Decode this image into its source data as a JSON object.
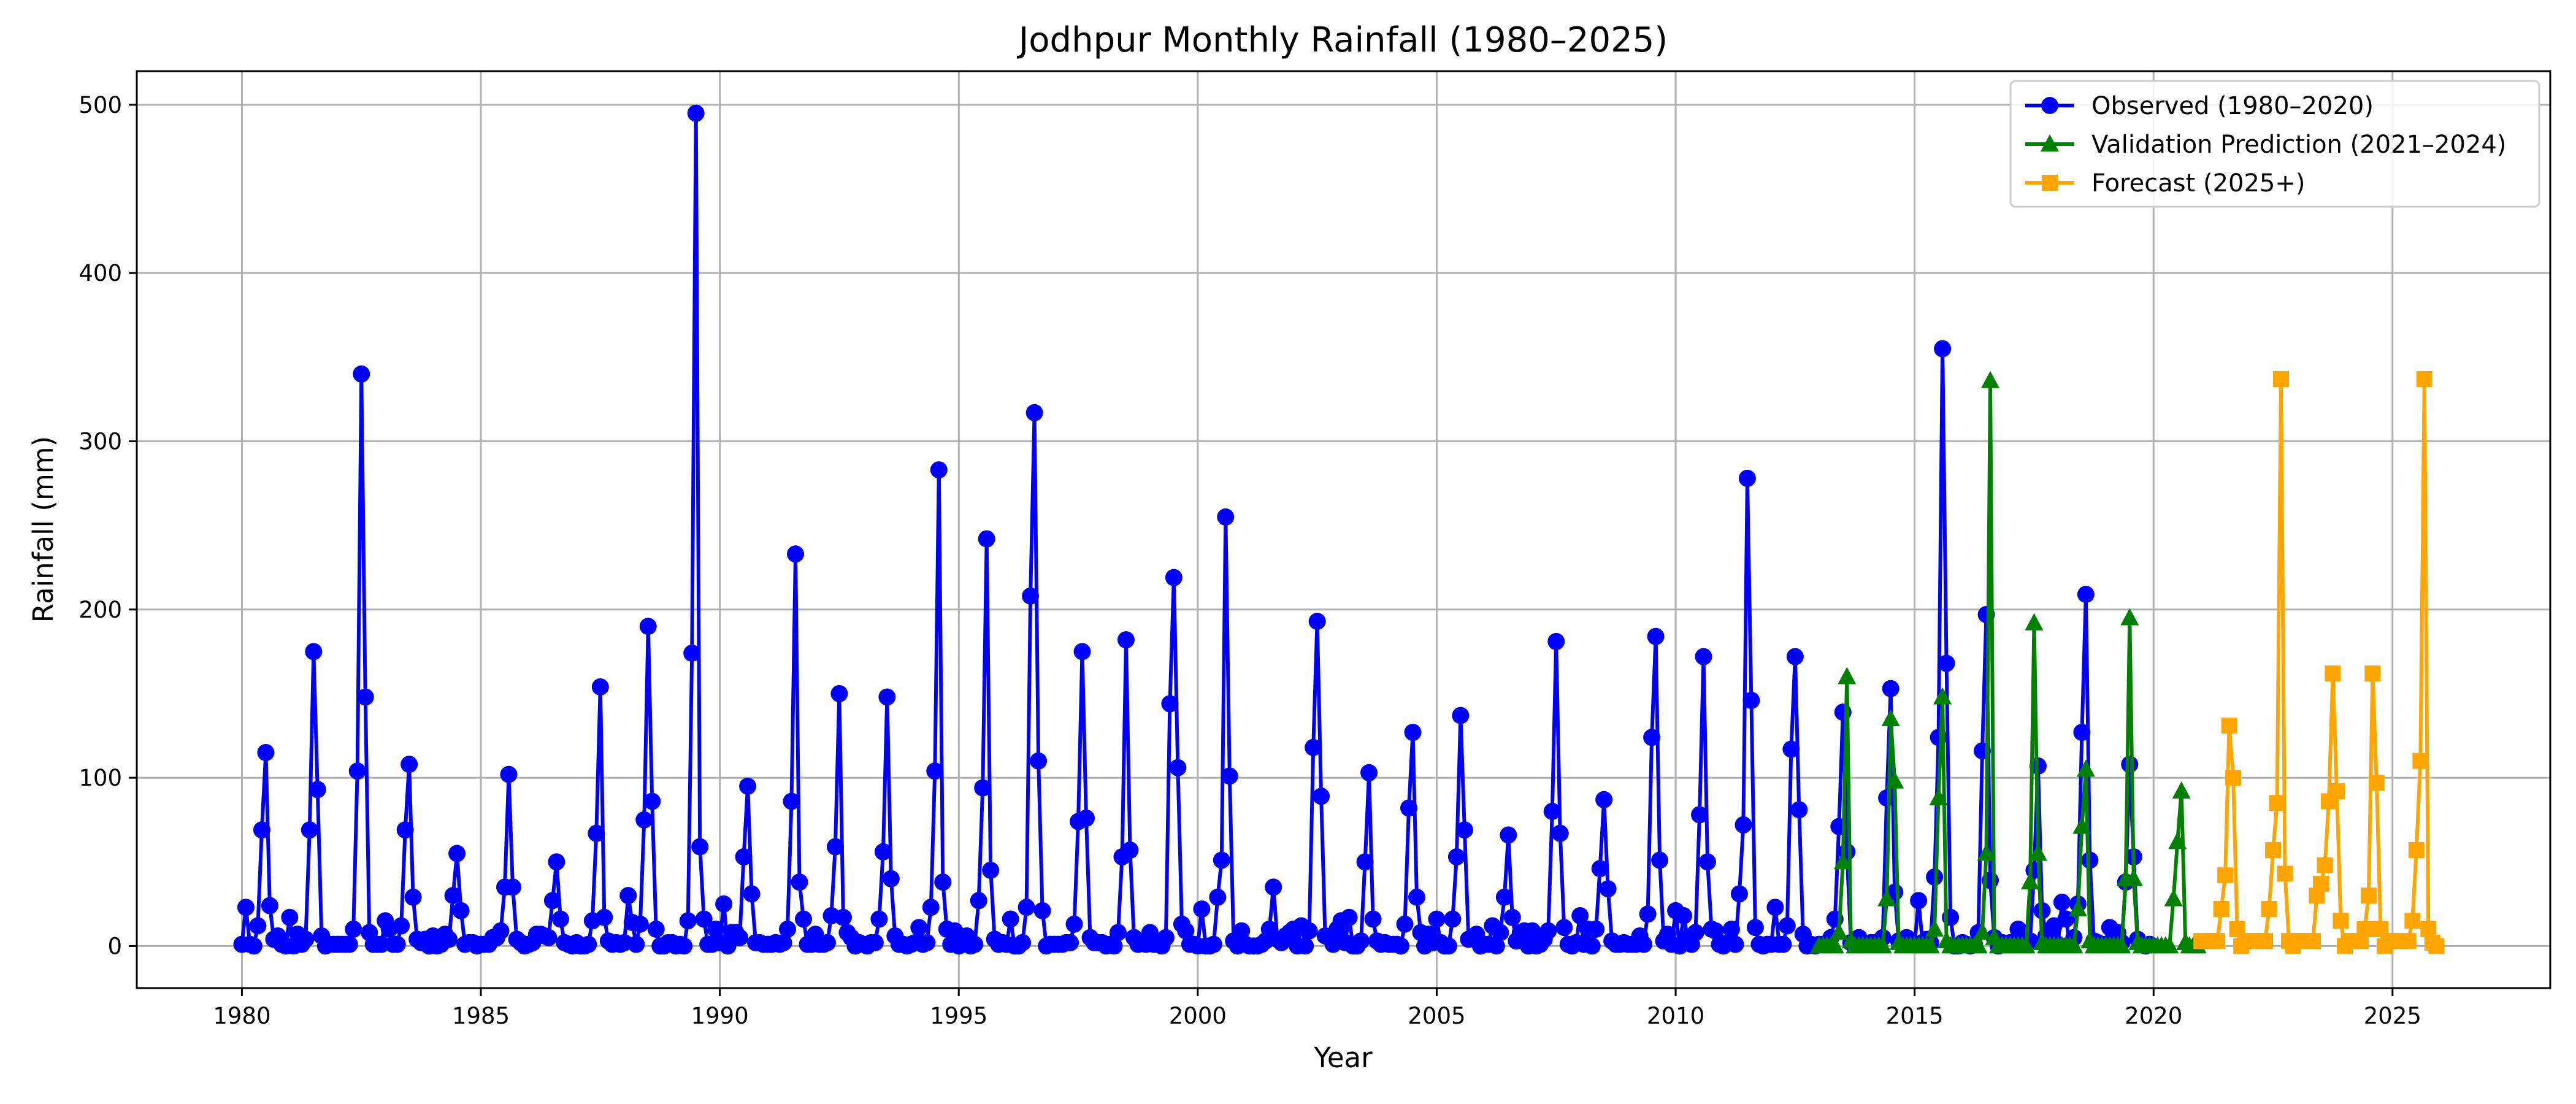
{
  "chart_data": {
    "type": "line",
    "title": "Jodhpur Monthly Rainfall (1980–2025)",
    "xlabel": "Year",
    "ylabel": "Rainfall (mm)",
    "xlim": [
      1977.8,
      2028.3
    ],
    "ylim": [
      -25,
      520
    ],
    "x_ticks": [
      1980,
      1985,
      1990,
      1995,
      2000,
      2005,
      2010,
      2015,
      2020,
      2025
    ],
    "y_ticks": [
      0,
      100,
      200,
      300,
      400,
      500
    ],
    "grid": true,
    "legend_position": "top-right",
    "series": [
      {
        "name": "Observed (1980–2020)",
        "color": "#0000ff",
        "marker": "circle",
        "yearly_peaks": [
          115,
          175,
          340,
          108,
          55,
          102,
          50,
          154,
          190,
          495,
          95,
          233,
          150,
          148,
          283,
          242,
          317,
          175,
          182,
          219,
          255,
          35,
          193,
          103,
          127,
          137,
          66,
          181,
          87,
          184,
          172,
          278,
          172,
          139,
          153,
          355,
          197,
          107,
          209,
          108
        ],
        "monthly_values": []
      },
      {
        "name": "Validation Prediction (2021–2024)",
        "color": "#008000",
        "marker": "triangle",
        "x_start": 2013.0,
        "monthly_values": [
          0,
          0,
          0,
          0,
          0,
          8,
          50,
          160,
          3,
          0,
          0,
          0,
          0,
          0,
          0,
          0,
          0,
          28,
          135,
          98,
          2,
          0,
          0,
          0,
          0,
          0,
          0,
          0,
          0,
          10,
          88,
          148,
          3,
          0,
          0,
          0,
          0,
          0,
          0,
          0,
          0,
          8,
          55,
          336,
          5,
          0,
          0,
          0,
          0,
          0,
          0,
          0,
          0,
          38,
          192,
          55,
          2,
          0,
          0,
          0,
          0,
          0,
          0,
          0,
          0,
          22,
          71,
          105,
          3,
          0,
          0,
          0,
          0,
          0,
          0,
          0,
          0,
          40,
          195,
          40,
          2,
          0,
          0,
          0,
          0,
          0,
          0,
          0,
          0,
          28,
          62,
          92,
          2,
          0,
          0,
          0
        ]
      },
      {
        "name": "Forecast (2025+)",
        "color": "#ffa500",
        "marker": "square",
        "x_start": 2021.0,
        "monthly_values": [
          3,
          3,
          3,
          3,
          3,
          22,
          42,
          131,
          100,
          10,
          0,
          3,
          3,
          3,
          3,
          3,
          3,
          22,
          57,
          85,
          337,
          43,
          3,
          0,
          3,
          3,
          3,
          3,
          3,
          30,
          37,
          48,
          86,
          162,
          92,
          15,
          0,
          3,
          3,
          3,
          3,
          10,
          30,
          162,
          97,
          10,
          0,
          3,
          3,
          3,
          3,
          3,
          3,
          15,
          57,
          110,
          337,
          10,
          2,
          0
        ]
      }
    ]
  }
}
